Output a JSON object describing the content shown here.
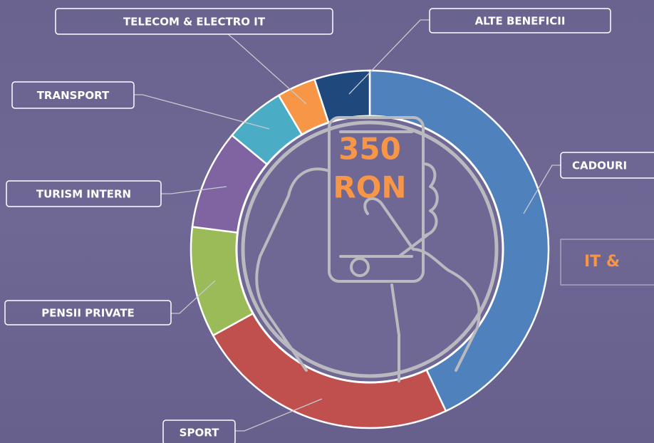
{
  "chart_data": {
    "type": "donut",
    "categories": [
      "CADOURI",
      "SPORT",
      "PENSII PRIVATE",
      "TURISM INTERN",
      "TRANSPORT",
      "TELECOM & ELECTRO IT",
      "ALTE BENEFICII"
    ],
    "values": [
      43,
      24,
      10,
      9,
      5.5,
      3.5,
      5
    ],
    "colors": [
      "#4f81bd",
      "#c0504d",
      "#9bbb59",
      "#8064a2",
      "#4bacc6",
      "#f79646",
      "#1f497d"
    ],
    "center_label": [
      "350",
      "RON"
    ],
    "annotation": "IT &"
  }
}
